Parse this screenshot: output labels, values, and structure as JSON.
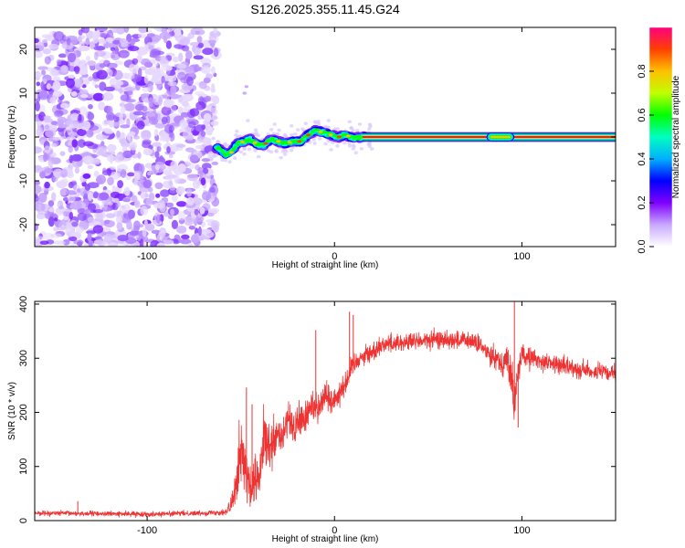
{
  "chart_data": [
    {
      "type": "heatmap",
      "title": "S126.2025.355.11.45.G24",
      "xlabel": "Height of straight line (km)",
      "ylabel": "Frequency (Hz)",
      "xlim": [
        -160,
        150
      ],
      "ylim": [
        -25,
        25
      ],
      "xticks": [
        -100,
        0,
        100
      ],
      "yticks": [
        -20,
        -10,
        0,
        10,
        20
      ],
      "noise_region_x": [
        -160,
        -65
      ],
      "signal_track": {
        "x": [
          -62,
          -58,
          -55,
          -52,
          -48,
          -45,
          -42,
          -38,
          -34,
          -30,
          -26,
          -22,
          -18,
          -14,
          -10,
          -6,
          -2,
          2,
          6,
          10,
          15,
          20,
          40,
          60,
          80,
          85,
          88,
          90,
          92,
          95,
          100,
          120,
          150
        ],
        "y": [
          -2.5,
          -4,
          -3.5,
          -1.5,
          -1,
          -0.5,
          -1.5,
          -2,
          -0.5,
          -1,
          -1.5,
          -1,
          -1,
          0.5,
          1.5,
          1,
          0.5,
          0,
          0.5,
          -0.3,
          0,
          0,
          0,
          0,
          0,
          -0.3,
          0.3,
          0,
          0,
          0,
          0,
          0,
          0
        ],
        "peak_x_range": [
          15,
          150
        ],
        "artifact_points": [
          {
            "x": -48,
            "y": 10
          },
          {
            "x": -47,
            "y": 11.5
          }
        ]
      },
      "colorbar": {
        "label": "Normalized spectral amplitude",
        "range": [
          0,
          1
        ],
        "ticks": [
          "0.0",
          "0.2",
          "0.4",
          "0.6",
          "0.8"
        ],
        "colors": [
          "#ffffff",
          "#c8a8ff",
          "#8000ff",
          "#0000ff",
          "#00b0ff",
          "#00ffc0",
          "#00ff00",
          "#c0ff00",
          "#ffc000",
          "#ff4000",
          "#ff0080"
        ]
      }
    },
    {
      "type": "line",
      "xlabel": "Height of straight line (km)",
      "ylabel": "SNR (10 * v/v)",
      "xlim": [
        -160,
        150
      ],
      "ylim": [
        0,
        405
      ],
      "xticks": [
        -100,
        0,
        100
      ],
      "yticks": [
        0,
        100,
        200,
        300,
        400
      ],
      "series": [
        {
          "name": "SNR",
          "color": "#ee3333",
          "x": [
            -160,
            -130,
            -100,
            -70,
            -58,
            -55,
            -52,
            -50,
            -48,
            -46,
            -44,
            -42,
            -40,
            -38,
            -35,
            -32,
            -30,
            -28,
            -25,
            -22,
            -20,
            -18,
            -15,
            -12,
            -10,
            -8,
            -5,
            -2,
            0,
            5,
            8,
            10,
            15,
            20,
            25,
            30,
            40,
            50,
            60,
            70,
            75,
            80,
            85,
            90,
            92,
            94,
            96,
            98,
            100,
            110,
            120,
            130,
            140,
            150
          ],
          "y": [
            14,
            13,
            12,
            14,
            16,
            25,
            90,
            140,
            100,
            70,
            50,
            80,
            70,
            150,
            130,
            140,
            160,
            150,
            185,
            170,
            180,
            185,
            190,
            215,
            215,
            210,
            235,
            220,
            225,
            250,
            270,
            290,
            305,
            310,
            325,
            328,
            330,
            333,
            335,
            332,
            330,
            315,
            305,
            290,
            300,
            270,
            210,
            280,
            305,
            295,
            288,
            280,
            275,
            270
          ],
          "noise": [
            4,
            4,
            4,
            4,
            5,
            25,
            45,
            55,
            45,
            40,
            35,
            40,
            40,
            45,
            40,
            40,
            35,
            35,
            30,
            30,
            30,
            30,
            30,
            30,
            28,
            25,
            25,
            25,
            22,
            20,
            20,
            18,
            16,
            16,
            15,
            15,
            15,
            15,
            15,
            15,
            15,
            16,
            18,
            20,
            25,
            35,
            40,
            30,
            18,
            15,
            14,
            14,
            14,
            14
          ],
          "spikes": [
            {
              "x": -137,
              "y": 36
            },
            {
              "x": -47,
              "y": 246
            },
            {
              "x": -44,
              "y": 215
            },
            {
              "x": -10,
              "y": 352
            },
            {
              "x": 8,
              "y": 386
            },
            {
              "x": 10,
              "y": 380
            },
            {
              "x": 96,
              "y": 404
            },
            {
              "x": 98,
              "y": 172
            }
          ]
        }
      ]
    }
  ]
}
